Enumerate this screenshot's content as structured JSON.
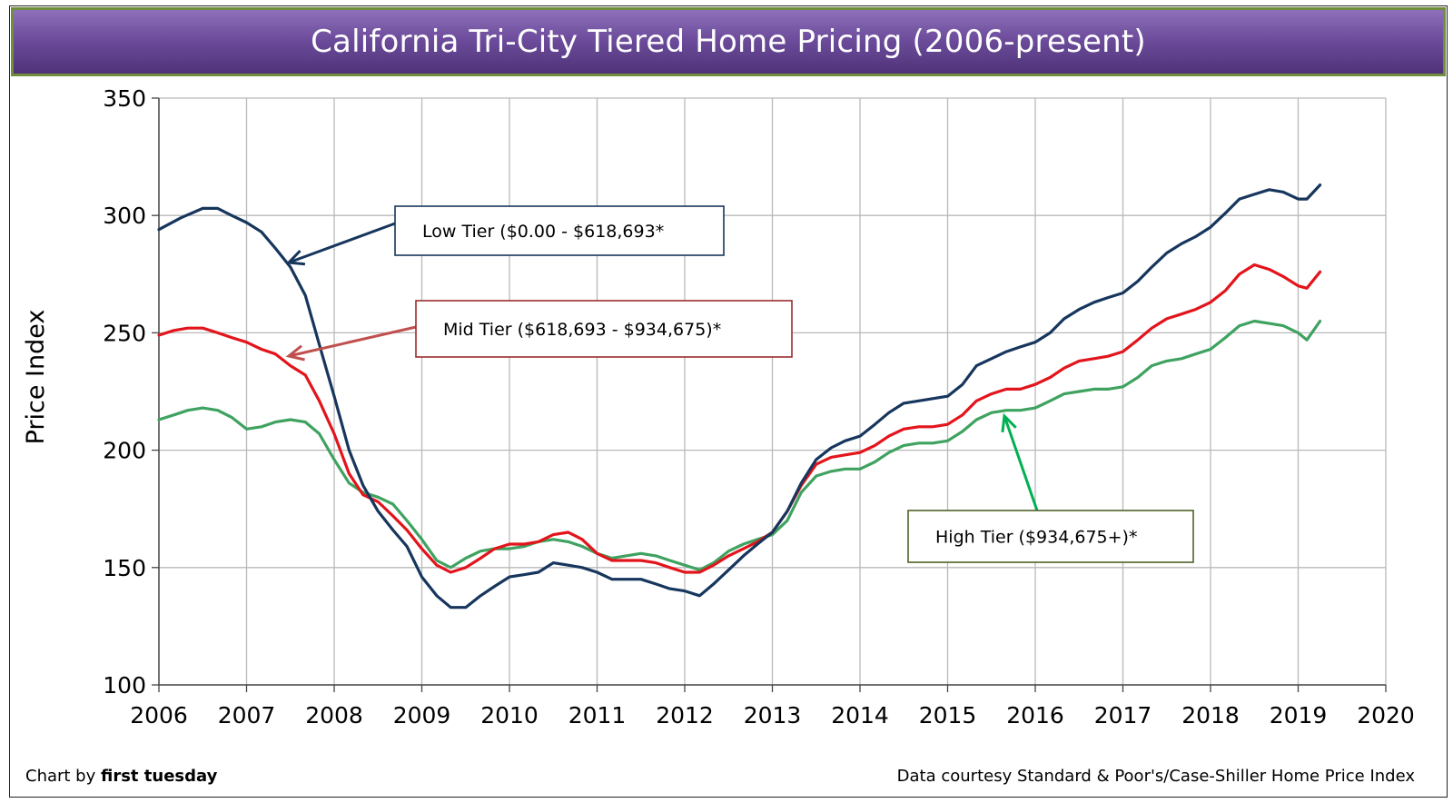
{
  "chart_data": {
    "type": "line",
    "title": "California Tri-City Tiered Home Pricing (2006-present)",
    "xlabel": "",
    "ylabel": "Price Index",
    "xlim": [
      2006,
      2020
    ],
    "ylim": [
      100,
      350
    ],
    "x_ticks": [
      "2006",
      "2007",
      "2008",
      "2009",
      "2010",
      "2011",
      "2012",
      "2013",
      "2014",
      "2015",
      "2016",
      "2017",
      "2018",
      "2019",
      "2020"
    ],
    "y_ticks": [
      "100",
      "150",
      "200",
      "250",
      "300",
      "350"
    ],
    "grid": true,
    "series": [
      {
        "name": "Low Tier ($0.00 - $618,693*",
        "color": "#17365d",
        "points": [
          [
            2006.0,
            294
          ],
          [
            2006.25,
            299
          ],
          [
            2006.5,
            303
          ],
          [
            2006.67,
            303
          ],
          [
            2006.83,
            300
          ],
          [
            2007.0,
            297
          ],
          [
            2007.17,
            293
          ],
          [
            2007.33,
            286
          ],
          [
            2007.5,
            278
          ],
          [
            2007.67,
            266
          ],
          [
            2007.83,
            245
          ],
          [
            2008.0,
            223
          ],
          [
            2008.17,
            200
          ],
          [
            2008.33,
            185
          ],
          [
            2008.5,
            174
          ],
          [
            2008.67,
            166
          ],
          [
            2008.83,
            159
          ],
          [
            2009.0,
            146
          ],
          [
            2009.17,
            138
          ],
          [
            2009.33,
            133
          ],
          [
            2009.5,
            133
          ],
          [
            2009.67,
            138
          ],
          [
            2009.83,
            142
          ],
          [
            2010.0,
            146
          ],
          [
            2010.17,
            147
          ],
          [
            2010.33,
            148
          ],
          [
            2010.5,
            152
          ],
          [
            2010.67,
            151
          ],
          [
            2010.83,
            150
          ],
          [
            2011.0,
            148
          ],
          [
            2011.17,
            145
          ],
          [
            2011.33,
            145
          ],
          [
            2011.5,
            145
          ],
          [
            2011.67,
            143
          ],
          [
            2011.83,
            141
          ],
          [
            2012.0,
            140
          ],
          [
            2012.17,
            138
          ],
          [
            2012.33,
            143
          ],
          [
            2012.5,
            149
          ],
          [
            2012.67,
            155
          ],
          [
            2012.83,
            160
          ],
          [
            2013.0,
            165
          ],
          [
            2013.17,
            174
          ],
          [
            2013.33,
            186
          ],
          [
            2013.5,
            196
          ],
          [
            2013.67,
            201
          ],
          [
            2013.83,
            204
          ],
          [
            2014.0,
            206
          ],
          [
            2014.17,
            211
          ],
          [
            2014.33,
            216
          ],
          [
            2014.5,
            220
          ],
          [
            2014.67,
            221
          ],
          [
            2014.83,
            222
          ],
          [
            2015.0,
            223
          ],
          [
            2015.17,
            228
          ],
          [
            2015.33,
            236
          ],
          [
            2015.5,
            239
          ],
          [
            2015.67,
            242
          ],
          [
            2015.83,
            244
          ],
          [
            2016.0,
            246
          ],
          [
            2016.17,
            250
          ],
          [
            2016.33,
            256
          ],
          [
            2016.5,
            260
          ],
          [
            2016.67,
            263
          ],
          [
            2016.83,
            265
          ],
          [
            2017.0,
            267
          ],
          [
            2017.17,
            272
          ],
          [
            2017.33,
            278
          ],
          [
            2017.5,
            284
          ],
          [
            2017.67,
            288
          ],
          [
            2017.83,
            291
          ],
          [
            2018.0,
            295
          ],
          [
            2018.17,
            301
          ],
          [
            2018.33,
            307
          ],
          [
            2018.5,
            309
          ],
          [
            2018.67,
            311
          ],
          [
            2018.83,
            310
          ],
          [
            2019.0,
            307
          ],
          [
            2019.1,
            307
          ],
          [
            2019.25,
            313
          ]
        ]
      },
      {
        "name": "Mid Tier ($618,693 - $934,675)*",
        "color": "#e3141b",
        "points": [
          [
            2006.0,
            249
          ],
          [
            2006.17,
            251
          ],
          [
            2006.33,
            252
          ],
          [
            2006.5,
            252
          ],
          [
            2006.67,
            250
          ],
          [
            2006.83,
            248
          ],
          [
            2007.0,
            246
          ],
          [
            2007.17,
            243
          ],
          [
            2007.33,
            241
          ],
          [
            2007.5,
            236
          ],
          [
            2007.67,
            232
          ],
          [
            2007.83,
            221
          ],
          [
            2008.0,
            207
          ],
          [
            2008.17,
            190
          ],
          [
            2008.33,
            181
          ],
          [
            2008.5,
            178
          ],
          [
            2008.67,
            172
          ],
          [
            2008.83,
            166
          ],
          [
            2009.0,
            158
          ],
          [
            2009.17,
            151
          ],
          [
            2009.33,
            148
          ],
          [
            2009.5,
            150
          ],
          [
            2009.67,
            154
          ],
          [
            2009.83,
            158
          ],
          [
            2010.0,
            160
          ],
          [
            2010.17,
            160
          ],
          [
            2010.33,
            161
          ],
          [
            2010.5,
            164
          ],
          [
            2010.67,
            165
          ],
          [
            2010.83,
            162
          ],
          [
            2011.0,
            156
          ],
          [
            2011.17,
            153
          ],
          [
            2011.33,
            153
          ],
          [
            2011.5,
            153
          ],
          [
            2011.67,
            152
          ],
          [
            2011.83,
            150
          ],
          [
            2012.0,
            148
          ],
          [
            2012.17,
            148
          ],
          [
            2012.33,
            151
          ],
          [
            2012.5,
            155
          ],
          [
            2012.67,
            158
          ],
          [
            2012.83,
            161
          ],
          [
            2013.0,
            165
          ],
          [
            2013.17,
            174
          ],
          [
            2013.33,
            185
          ],
          [
            2013.5,
            194
          ],
          [
            2013.67,
            197
          ],
          [
            2013.83,
            198
          ],
          [
            2014.0,
            199
          ],
          [
            2014.17,
            202
          ],
          [
            2014.33,
            206
          ],
          [
            2014.5,
            209
          ],
          [
            2014.67,
            210
          ],
          [
            2014.83,
            210
          ],
          [
            2015.0,
            211
          ],
          [
            2015.17,
            215
          ],
          [
            2015.33,
            221
          ],
          [
            2015.5,
            224
          ],
          [
            2015.67,
            226
          ],
          [
            2015.83,
            226
          ],
          [
            2016.0,
            228
          ],
          [
            2016.17,
            231
          ],
          [
            2016.33,
            235
          ],
          [
            2016.5,
            238
          ],
          [
            2016.67,
            239
          ],
          [
            2016.83,
            240
          ],
          [
            2017.0,
            242
          ],
          [
            2017.17,
            247
          ],
          [
            2017.33,
            252
          ],
          [
            2017.5,
            256
          ],
          [
            2017.67,
            258
          ],
          [
            2017.83,
            260
          ],
          [
            2018.0,
            263
          ],
          [
            2018.17,
            268
          ],
          [
            2018.33,
            275
          ],
          [
            2018.5,
            279
          ],
          [
            2018.67,
            277
          ],
          [
            2018.83,
            274
          ],
          [
            2019.0,
            270
          ],
          [
            2019.1,
            269
          ],
          [
            2019.25,
            276
          ]
        ]
      },
      {
        "name": "High Tier ($934,675+)*",
        "color": "#3fa260",
        "points": [
          [
            2006.0,
            213
          ],
          [
            2006.17,
            215
          ],
          [
            2006.33,
            217
          ],
          [
            2006.5,
            218
          ],
          [
            2006.67,
            217
          ],
          [
            2006.83,
            214
          ],
          [
            2007.0,
            209
          ],
          [
            2007.17,
            210
          ],
          [
            2007.33,
            212
          ],
          [
            2007.5,
            213
          ],
          [
            2007.67,
            212
          ],
          [
            2007.83,
            207
          ],
          [
            2008.0,
            196
          ],
          [
            2008.17,
            186
          ],
          [
            2008.33,
            182
          ],
          [
            2008.5,
            180
          ],
          [
            2008.67,
            177
          ],
          [
            2008.83,
            170
          ],
          [
            2009.0,
            162
          ],
          [
            2009.17,
            153
          ],
          [
            2009.33,
            150
          ],
          [
            2009.5,
            154
          ],
          [
            2009.67,
            157
          ],
          [
            2009.83,
            158
          ],
          [
            2010.0,
            158
          ],
          [
            2010.17,
            159
          ],
          [
            2010.33,
            161
          ],
          [
            2010.5,
            162
          ],
          [
            2010.67,
            161
          ],
          [
            2010.83,
            159
          ],
          [
            2011.0,
            156
          ],
          [
            2011.17,
            154
          ],
          [
            2011.33,
            155
          ],
          [
            2011.5,
            156
          ],
          [
            2011.67,
            155
          ],
          [
            2011.83,
            153
          ],
          [
            2012.0,
            151
          ],
          [
            2012.17,
            149
          ],
          [
            2012.33,
            152
          ],
          [
            2012.5,
            157
          ],
          [
            2012.67,
            160
          ],
          [
            2012.83,
            162
          ],
          [
            2013.0,
            164
          ],
          [
            2013.17,
            170
          ],
          [
            2013.33,
            182
          ],
          [
            2013.5,
            189
          ],
          [
            2013.67,
            191
          ],
          [
            2013.83,
            192
          ],
          [
            2014.0,
            192
          ],
          [
            2014.17,
            195
          ],
          [
            2014.33,
            199
          ],
          [
            2014.5,
            202
          ],
          [
            2014.67,
            203
          ],
          [
            2014.83,
            203
          ],
          [
            2015.0,
            204
          ],
          [
            2015.17,
            208
          ],
          [
            2015.33,
            213
          ],
          [
            2015.5,
            216
          ],
          [
            2015.67,
            217
          ],
          [
            2015.83,
            217
          ],
          [
            2016.0,
            218
          ],
          [
            2016.17,
            221
          ],
          [
            2016.33,
            224
          ],
          [
            2016.5,
            225
          ],
          [
            2016.67,
            226
          ],
          [
            2016.83,
            226
          ],
          [
            2017.0,
            227
          ],
          [
            2017.17,
            231
          ],
          [
            2017.33,
            236
          ],
          [
            2017.5,
            238
          ],
          [
            2017.67,
            239
          ],
          [
            2017.83,
            241
          ],
          [
            2018.0,
            243
          ],
          [
            2018.17,
            248
          ],
          [
            2018.33,
            253
          ],
          [
            2018.5,
            255
          ],
          [
            2018.67,
            254
          ],
          [
            2018.83,
            253
          ],
          [
            2019.0,
            250
          ],
          [
            2019.1,
            247
          ],
          [
            2019.25,
            255
          ]
        ]
      }
    ],
    "annotations": [
      {
        "text": "Low Tier ($0.00 - $618,693*",
        "color": "#17365d"
      },
      {
        "text": "Mid Tier ($618,693 - $934,675)*",
        "color": "#c0504d"
      },
      {
        "text": "High Tier ($934,675+)*",
        "color": "#00b050"
      }
    ]
  },
  "footer": {
    "credit_prefix": "Chart by ",
    "credit_name": "first tuesday",
    "source": "Data courtesy Standard & Poor's/Case-Shiller Home Price Index"
  }
}
